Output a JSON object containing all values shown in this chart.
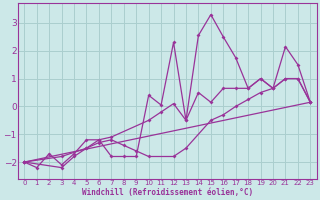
{
  "title": "",
  "xlabel": "Windchill (Refroidissement éolien,°C)",
  "ylabel": "",
  "bg_color": "#cce8e8",
  "grid_color": "#aacece",
  "line_color": "#993399",
  "xlim": [
    -0.5,
    23.5
  ],
  "ylim": [
    -2.6,
    3.7
  ],
  "yticks": [
    -2,
    -1,
    0,
    1,
    2,
    3
  ],
  "xticks": [
    0,
    1,
    2,
    3,
    4,
    5,
    6,
    7,
    8,
    9,
    10,
    11,
    12,
    13,
    14,
    15,
    16,
    17,
    18,
    19,
    20,
    21,
    22,
    23
  ],
  "series1": [
    [
      0,
      -2.0
    ],
    [
      1,
      -2.2
    ],
    [
      2,
      -1.7
    ],
    [
      3,
      -2.1
    ],
    [
      4,
      -1.7
    ],
    [
      5,
      -1.2
    ],
    [
      6,
      -1.2
    ],
    [
      7,
      -1.8
    ],
    [
      8,
      -1.8
    ],
    [
      9,
      -1.8
    ],
    [
      10,
      0.4
    ],
    [
      11,
      0.05
    ],
    [
      12,
      2.3
    ],
    [
      13,
      -0.5
    ],
    [
      14,
      2.55
    ],
    [
      15,
      3.3
    ],
    [
      16,
      2.5
    ],
    [
      17,
      1.75
    ],
    [
      18,
      0.65
    ],
    [
      19,
      1.0
    ],
    [
      20,
      0.65
    ],
    [
      21,
      2.15
    ],
    [
      22,
      1.5
    ],
    [
      23,
      0.15
    ]
  ],
  "series2": [
    [
      0,
      -2.0
    ],
    [
      23,
      0.15
    ]
  ],
  "series3": [
    [
      0,
      -2.0
    ],
    [
      3,
      -2.2
    ],
    [
      4,
      -1.8
    ],
    [
      5,
      -1.5
    ],
    [
      6,
      -1.2
    ],
    [
      7,
      -1.1
    ],
    [
      10,
      -0.5
    ],
    [
      11,
      -0.2
    ],
    [
      12,
      0.1
    ],
    [
      13,
      -0.5
    ],
    [
      14,
      0.5
    ],
    [
      15,
      0.15
    ],
    [
      16,
      0.65
    ],
    [
      17,
      0.65
    ],
    [
      18,
      0.65
    ],
    [
      19,
      1.0
    ],
    [
      20,
      0.65
    ],
    [
      21,
      1.0
    ],
    [
      22,
      1.0
    ],
    [
      23,
      0.15
    ]
  ],
  "series4": [
    [
      0,
      -2.0
    ],
    [
      3,
      -1.8
    ],
    [
      5,
      -1.5
    ],
    [
      6,
      -1.3
    ],
    [
      7,
      -1.2
    ],
    [
      8,
      -1.4
    ],
    [
      9,
      -1.6
    ],
    [
      10,
      -1.8
    ],
    [
      12,
      -1.8
    ],
    [
      13,
      -1.5
    ],
    [
      15,
      -0.5
    ],
    [
      16,
      -0.3
    ],
    [
      17,
      0.0
    ],
    [
      18,
      0.25
    ],
    [
      19,
      0.5
    ],
    [
      20,
      0.65
    ],
    [
      21,
      1.0
    ],
    [
      22,
      1.0
    ],
    [
      23,
      0.15
    ]
  ]
}
